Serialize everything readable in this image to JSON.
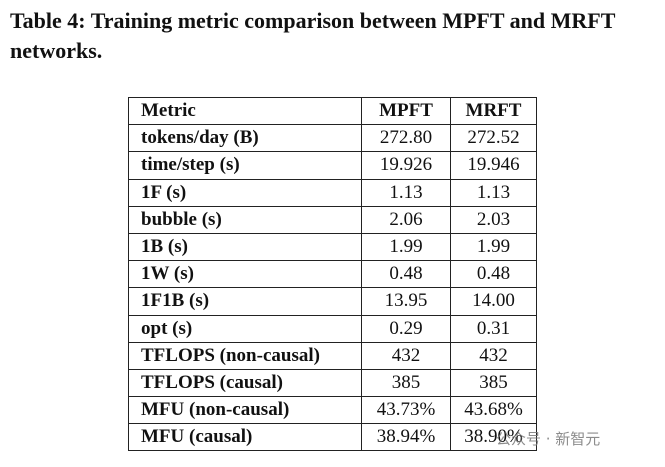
{
  "caption": "Table 4: Training metric comparison between MPFT and MRFT networks.",
  "table": {
    "header": [
      "Metric",
      "MPFT",
      "MRFT"
    ],
    "rows": [
      [
        "tokens/day (B)",
        "272.80",
        "272.52"
      ],
      [
        "time/step (s)",
        "19.926",
        "19.946"
      ],
      [
        "1F (s)",
        "1.13",
        "1.13"
      ],
      [
        "bubble (s)",
        "2.06",
        "2.03"
      ],
      [
        "1B (s)",
        "1.99",
        "1.99"
      ],
      [
        "1W (s)",
        "0.48",
        "0.48"
      ],
      [
        "1F1B (s)",
        "13.95",
        "14.00"
      ],
      [
        "opt (s)",
        "0.29",
        "0.31"
      ],
      [
        "TFLOPS (non-causal)",
        "432",
        "432"
      ],
      [
        "TFLOPS (causal)",
        "385",
        "385"
      ],
      [
        "MFU (non-causal)",
        "43.73%",
        "43.68%"
      ],
      [
        "MFU (causal)",
        "38.94%",
        "38.90%"
      ]
    ]
  },
  "watermark": "公众号 · 新智元"
}
